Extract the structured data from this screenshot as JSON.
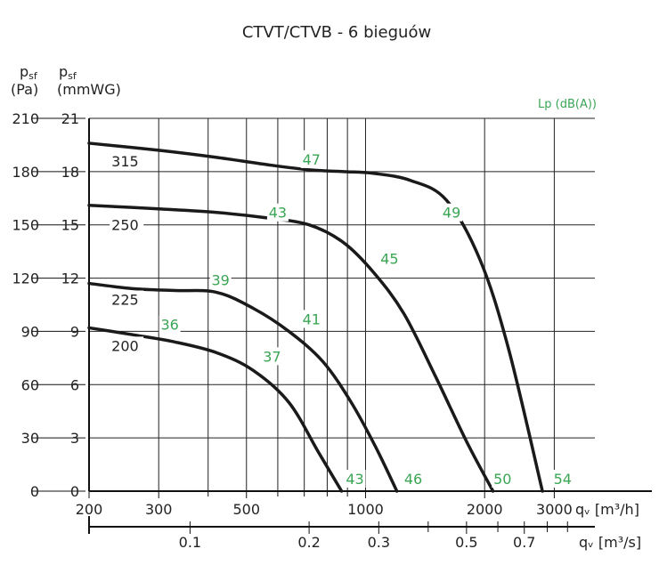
{
  "chart_data": {
    "type": "line",
    "title": "CTVT/CTVB - 6 bieguów",
    "x_scale": "log",
    "x_label_main": "qᵥ [m³/h]",
    "x_label_secondary": "qᵥ [m³/s]",
    "y_label_left_symbol": "p",
    "y_label_left_sub": "sf",
    "y_label_left_unit": "(Pa)",
    "y_label_right_symbol": "p",
    "y_label_right_sub": "sf",
    "y_label_right_unit": "(mmWG)",
    "noise_label": "Lp (dB(A))",
    "xlim": [
      200,
      3800
    ],
    "ylim_pa": [
      0,
      210
    ],
    "ylim_mmwg": [
      0,
      21
    ],
    "x_ticks_m3h": [
      "200",
      "300",
      "500",
      "1000",
      "2000",
      "3000"
    ],
    "x_ticks_m3s": [
      "0.1",
      "0.2",
      "0.3",
      "0.5",
      "0.7"
    ],
    "y_ticks_pa": [
      "0",
      "30",
      "60",
      "90",
      "120",
      "150",
      "180",
      "210"
    ],
    "y_ticks_mmwg": [
      "0",
      "3",
      "6",
      "9",
      "12",
      "15",
      "18",
      "21"
    ],
    "grid": true,
    "series": [
      {
        "name": "200",
        "x": [
          200,
          260,
          330,
          420,
          520,
          640,
          760,
          870
        ],
        "y": [
          92,
          88,
          84,
          78,
          68,
          50,
          22,
          0
        ]
      },
      {
        "name": "225",
        "x": [
          200,
          260,
          330,
          420,
          520,
          640,
          780,
          920,
          1060,
          1200
        ],
        "y": [
          117,
          114,
          113,
          112,
          103,
          90,
          73,
          50,
          25,
          0
        ]
      },
      {
        "name": "250",
        "x": [
          200,
          300,
          420,
          560,
          720,
          880,
          1050,
          1250,
          1500,
          1800,
          2100
        ],
        "y": [
          161,
          159,
          157,
          154,
          150,
          140,
          123,
          100,
          65,
          28,
          0
        ]
      },
      {
        "name": "315",
        "x": [
          200,
          300,
          420,
          560,
          720,
          880,
          1050,
          1300,
          1600,
          1950,
          2300,
          2800
        ],
        "y": [
          196,
          192,
          188,
          184,
          181,
          180,
          179,
          175,
          164,
          130,
          80,
          0
        ]
      }
    ],
    "noise_labels": [
      {
        "text": "47",
        "x": 730,
        "y": 185
      },
      {
        "text": "49",
        "x": 1650,
        "y": 155
      },
      {
        "text": "43",
        "x": 600,
        "y": 155
      },
      {
        "text": "45",
        "x": 1150,
        "y": 129
      },
      {
        "text": "39",
        "x": 430,
        "y": 117
      },
      {
        "text": "41",
        "x": 730,
        "y": 95
      },
      {
        "text": "36",
        "x": 320,
        "y": 92
      },
      {
        "text": "37",
        "x": 580,
        "y": 74
      },
      {
        "text": "43",
        "x": 940,
        "y": 5
      },
      {
        "text": "46",
        "x": 1320,
        "y": 5
      },
      {
        "text": "50",
        "x": 2220,
        "y": 5
      },
      {
        "text": "54",
        "x": 3150,
        "y": 5
      }
    ],
    "rpm_labels": [
      {
        "text": "315",
        "x": 245,
        "y": 184
      },
      {
        "text": "250",
        "x": 245,
        "y": 148
      },
      {
        "text": "225",
        "x": 245,
        "y": 106
      },
      {
        "text": "200",
        "x": 245,
        "y": 80
      }
    ]
  }
}
